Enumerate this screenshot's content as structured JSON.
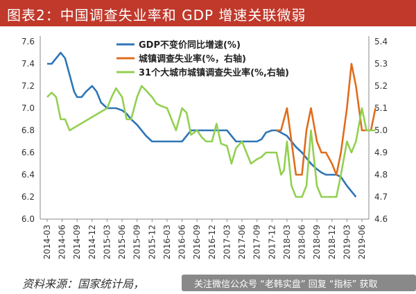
{
  "title": "图表2：中国调查失业率和 GDP 增速关联微弱",
  "source": "资料来源：国家统计局，",
  "watermark": "关注微信公众号 “老韩实盘” 回复 “指标” 获取",
  "chart_data": {
    "type": "line",
    "grid": false,
    "legend_position": "top-center",
    "x_ticks": [
      "2014-03",
      "2014-06",
      "2014-09",
      "2014-12",
      "2015-03",
      "2015-06",
      "2015-09",
      "2015-12",
      "2016-03",
      "2016-06",
      "2016-09",
      "2016-12",
      "2017-03",
      "2017-06",
      "2017-09",
      "2017-12",
      "2018-03",
      "2018-06",
      "2018-09",
      "2018-12",
      "2019-03",
      "2019-06"
    ],
    "ylim_left": [
      6.0,
      7.6
    ],
    "ylim_right": [
      4.6,
      5.4
    ],
    "yticks_left": [
      "6.0",
      "6.2",
      "6.4",
      "6.6",
      "6.8",
      "7.0",
      "7.2",
      "7.4",
      "7.6"
    ],
    "yticks_right": [
      "4.6",
      "4.7",
      "4.8",
      "4.9",
      "5.0",
      "5.1",
      "5.2",
      "5.3",
      "5.4"
    ],
    "series": [
      {
        "name": "GDP不变价同比增速(%)",
        "axis": "left",
        "color": "#2e75b6",
        "points": [
          [
            0,
            7.4
          ],
          [
            0.3,
            7.4
          ],
          [
            0.6,
            7.45
          ],
          [
            0.9,
            7.5
          ],
          [
            1.2,
            7.45
          ],
          [
            1.5,
            7.3
          ],
          [
            1.8,
            7.15
          ],
          [
            2.0,
            7.1
          ],
          [
            2.3,
            7.1
          ],
          [
            2.6,
            7.15
          ],
          [
            3.0,
            7.2
          ],
          [
            3.3,
            7.15
          ],
          [
            3.6,
            7.05
          ],
          [
            4.0,
            7.0
          ],
          [
            4.3,
            7.0
          ],
          [
            4.6,
            7.0
          ],
          [
            5.0,
            6.98
          ],
          [
            5.3,
            6.95
          ],
          [
            5.6,
            6.9
          ],
          [
            6.0,
            6.85
          ],
          [
            6.3,
            6.8
          ],
          [
            6.6,
            6.75
          ],
          [
            7.0,
            6.7
          ],
          [
            7.3,
            6.7
          ],
          [
            7.6,
            6.7
          ],
          [
            8.0,
            6.7
          ],
          [
            8.3,
            6.7
          ],
          [
            8.6,
            6.7
          ],
          [
            9.0,
            6.7
          ],
          [
            9.3,
            6.75
          ],
          [
            9.6,
            6.8
          ],
          [
            10.0,
            6.8
          ],
          [
            10.3,
            6.8
          ],
          [
            10.6,
            6.8
          ],
          [
            11.0,
            6.8
          ],
          [
            11.3,
            6.8
          ],
          [
            11.6,
            6.8
          ],
          [
            12.0,
            6.8
          ],
          [
            12.3,
            6.75
          ],
          [
            12.6,
            6.7
          ],
          [
            13.0,
            6.7
          ],
          [
            13.3,
            6.7
          ],
          [
            13.6,
            6.7
          ],
          [
            14.0,
            6.7
          ],
          [
            14.3,
            6.72
          ],
          [
            14.6,
            6.78
          ],
          [
            15.0,
            6.8
          ],
          [
            15.3,
            6.8
          ],
          [
            15.6,
            6.78
          ],
          [
            16.0,
            6.75
          ],
          [
            16.3,
            6.7
          ],
          [
            16.6,
            6.65
          ],
          [
            17.0,
            6.6
          ],
          [
            17.3,
            6.55
          ],
          [
            17.6,
            6.5
          ],
          [
            18.0,
            6.45
          ],
          [
            18.3,
            6.42
          ],
          [
            18.6,
            6.4
          ],
          [
            19.0,
            6.4
          ],
          [
            19.3,
            6.4
          ],
          [
            19.6,
            6.38
          ],
          [
            20.0,
            6.3
          ],
          [
            20.3,
            6.25
          ],
          [
            20.6,
            6.2
          ]
        ]
      },
      {
        "name": "城镇调查失业率(%，右轴)",
        "axis": "right",
        "color": "#e06c1c",
        "points": [
          [
            15.3,
            5.0
          ],
          [
            15.6,
            5.0
          ],
          [
            16.0,
            5.1
          ],
          [
            16.3,
            4.95
          ],
          [
            16.6,
            4.8
          ],
          [
            17.0,
            4.8
          ],
          [
            17.3,
            5.0
          ],
          [
            17.6,
            5.1
          ],
          [
            18.0,
            4.95
          ],
          [
            18.3,
            4.9
          ],
          [
            18.6,
            4.9
          ],
          [
            19.0,
            4.85
          ],
          [
            19.3,
            4.8
          ],
          [
            19.6,
            4.9
          ],
          [
            20.0,
            5.1
          ],
          [
            20.3,
            5.3
          ],
          [
            20.6,
            5.2
          ],
          [
            21.0,
            5.0
          ],
          [
            21.3,
            5.0
          ],
          [
            21.6,
            5.0
          ],
          [
            21.9,
            5.1
          ]
        ]
      },
      {
        "name": "31个大城市城镇调查失业率(%,右轴)",
        "axis": "right",
        "color": "#92d050",
        "points": [
          [
            0,
            5.15
          ],
          [
            0.3,
            5.17
          ],
          [
            0.6,
            5.15
          ],
          [
            0.9,
            5.05
          ],
          [
            1.2,
            5.05
          ],
          [
            1.5,
            5.0
          ],
          [
            2.0,
            5.02
          ],
          [
            2.5,
            5.04
          ],
          [
            3.0,
            5.06
          ],
          [
            3.5,
            5.08
          ],
          [
            4.0,
            5.1
          ],
          [
            4.3,
            5.15
          ],
          [
            4.6,
            5.19
          ],
          [
            5.0,
            5.15
          ],
          [
            5.3,
            5.05
          ],
          [
            5.6,
            5.05
          ],
          [
            6.0,
            5.15
          ],
          [
            6.3,
            5.2
          ],
          [
            6.6,
            5.18
          ],
          [
            7.0,
            5.15
          ],
          [
            7.3,
            5.12
          ],
          [
            7.6,
            5.11
          ],
          [
            8.0,
            5.1
          ],
          [
            8.3,
            5.05
          ],
          [
            8.6,
            5.0
          ],
          [
            9.0,
            5.1
          ],
          [
            9.3,
            5.08
          ],
          [
            9.6,
            4.98
          ],
          [
            10.0,
            5.0
          ],
          [
            10.3,
            4.97
          ],
          [
            10.6,
            4.95
          ],
          [
            11.0,
            4.95
          ],
          [
            11.3,
            5.03
          ],
          [
            11.6,
            4.94
          ],
          [
            12.0,
            4.93
          ],
          [
            12.3,
            4.85
          ],
          [
            12.6,
            4.92
          ],
          [
            13.0,
            4.95
          ],
          [
            13.3,
            4.9
          ],
          [
            13.6,
            4.85
          ],
          [
            14.0,
            4.87
          ],
          [
            14.3,
            4.88
          ],
          [
            14.6,
            4.9
          ],
          [
            15.0,
            4.9
          ],
          [
            15.3,
            4.9
          ],
          [
            15.6,
            4.8
          ],
          [
            15.8,
            4.82
          ],
          [
            16.0,
            4.95
          ],
          [
            16.3,
            4.75
          ],
          [
            16.6,
            4.7
          ],
          [
            17.0,
            4.7
          ],
          [
            17.3,
            4.75
          ],
          [
            17.6,
            5.0
          ],
          [
            18.0,
            4.75
          ],
          [
            18.3,
            4.7
          ],
          [
            18.6,
            4.7
          ],
          [
            19.0,
            4.7
          ],
          [
            19.3,
            4.7
          ],
          [
            19.6,
            4.8
          ],
          [
            20.0,
            4.95
          ],
          [
            20.3,
            4.9
          ],
          [
            20.6,
            4.95
          ],
          [
            21.0,
            5.1
          ],
          [
            21.3,
            5.0
          ],
          [
            21.6,
            5.0
          ],
          [
            21.9,
            5.0
          ]
        ]
      }
    ]
  }
}
